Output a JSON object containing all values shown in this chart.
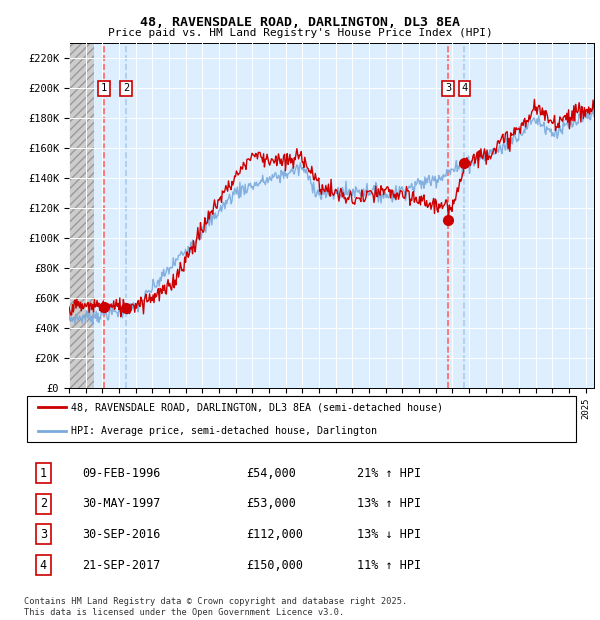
{
  "title_line1": "48, RAVENSDALE ROAD, DARLINGTON, DL3 8EA",
  "title_line2": "Price paid vs. HM Land Registry's House Price Index (HPI)",
  "ylabel_ticks": [
    "£0",
    "£20K",
    "£40K",
    "£60K",
    "£80K",
    "£100K",
    "£120K",
    "£140K",
    "£160K",
    "£180K",
    "£200K",
    "£220K"
  ],
  "ylabel_values": [
    0,
    20000,
    40000,
    60000,
    80000,
    100000,
    120000,
    140000,
    160000,
    180000,
    200000,
    220000
  ],
  "ylim": [
    0,
    230000
  ],
  "xlim_start": 1994.0,
  "xlim_end": 2025.5,
  "sale_dates": [
    1996.11,
    1997.42,
    2016.75,
    2017.72
  ],
  "sale_prices": [
    54000,
    53000,
    112000,
    150000
  ],
  "sale_labels": [
    "1",
    "2",
    "3",
    "4"
  ],
  "hpi_color": "#7aaadd",
  "price_color": "#cc0000",
  "sale_marker_color": "#cc0000",
  "vline_color_red": "#ff6666",
  "vline_color_blue": "#aaccee",
  "bg_hatched_color": "#dddddd",
  "bg_chart_color": "#ddeeff",
  "legend_line1": "48, RAVENSDALE ROAD, DARLINGTON, DL3 8EA (semi-detached house)",
  "legend_line2": "HPI: Average price, semi-detached house, Darlington",
  "table_entries": [
    [
      "1",
      "09-FEB-1996",
      "£54,000",
      "21% ↑ HPI"
    ],
    [
      "2",
      "30-MAY-1997",
      "£53,000",
      "13% ↑ HPI"
    ],
    [
      "3",
      "30-SEP-2016",
      "£112,000",
      "13% ↓ HPI"
    ],
    [
      "4",
      "21-SEP-2017",
      "£150,000",
      "11% ↑ HPI"
    ]
  ],
  "footnote": "Contains HM Land Registry data © Crown copyright and database right 2025.\nThis data is licensed under the Open Government Licence v3.0."
}
